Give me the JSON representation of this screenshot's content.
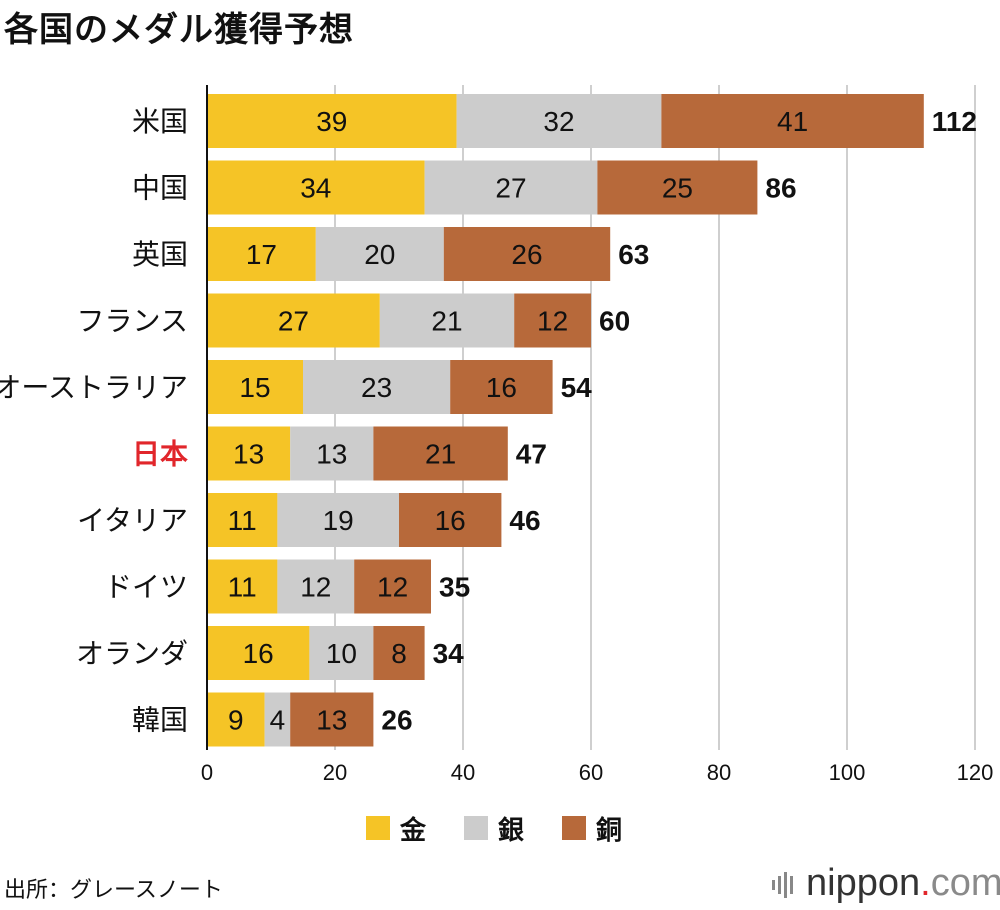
{
  "title": "各国のメダル獲得予想",
  "colors": {
    "gold": "#f5c426",
    "silver": "#cccccc",
    "bronze": "#b7693a",
    "highlight": "#e1262b",
    "grid": "#cfcfcf",
    "axis": "#111111"
  },
  "chart_data": {
    "type": "bar",
    "orientation": "horizontal",
    "stacked": true,
    "title": "各国のメダル獲得予想",
    "categories": [
      "米国",
      "中国",
      "英国",
      "フランス",
      "オーストラリア",
      "日本",
      "イタリア",
      "ドイツ",
      "オランダ",
      "韓国"
    ],
    "highlight_category": "日本",
    "series": [
      {
        "name": "金",
        "color_key": "gold",
        "values": [
          39,
          34,
          17,
          27,
          15,
          13,
          11,
          11,
          16,
          9
        ]
      },
      {
        "name": "銀",
        "color_key": "silver",
        "values": [
          32,
          27,
          20,
          21,
          23,
          13,
          19,
          12,
          10,
          4
        ]
      },
      {
        "name": "銅",
        "color_key": "bronze",
        "values": [
          41,
          25,
          26,
          12,
          16,
          21,
          16,
          12,
          8,
          13
        ]
      }
    ],
    "totals": [
      112,
      86,
      63,
      60,
      54,
      47,
      46,
      35,
      34,
      26
    ],
    "xlim": [
      0,
      120
    ],
    "xticks": [
      0,
      20,
      40,
      60,
      80,
      100,
      120
    ],
    "grid": true,
    "legend_position": "bottom"
  },
  "legend": {
    "gold": "金",
    "silver": "銀",
    "bronze": "銅"
  },
  "source": "出所：グレースノート",
  "logo": {
    "name": "nippon",
    "dot": ".",
    "tld": "com"
  }
}
